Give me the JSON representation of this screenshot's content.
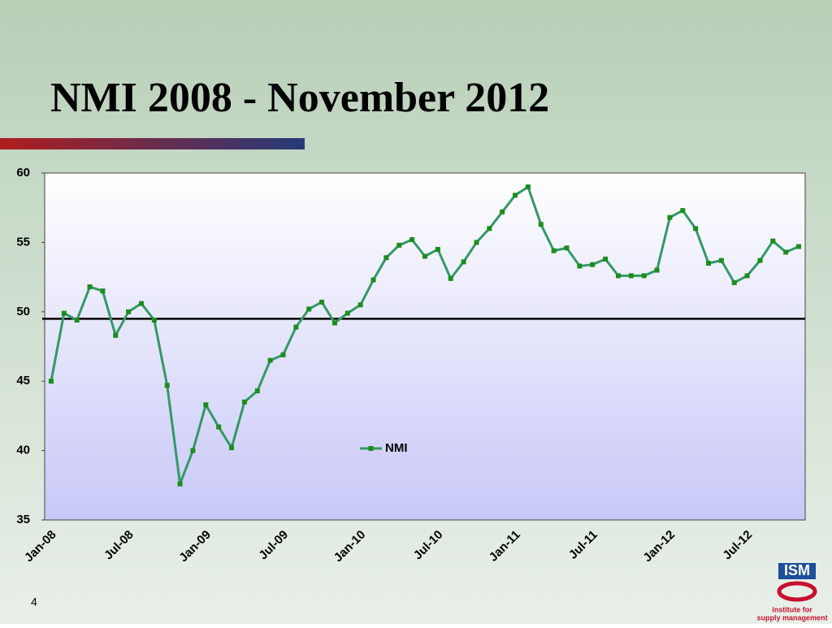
{
  "slide": {
    "title": "NMI  2008 - November 2012",
    "page_number": "4",
    "logo": {
      "name": "ISM",
      "tagline_1": "institute for",
      "tagline_2": "supply management"
    }
  },
  "chart_data": {
    "type": "line",
    "categories": [
      "Jan-08",
      null,
      null,
      null,
      null,
      null,
      "Jul-08",
      null,
      null,
      null,
      null,
      null,
      "Jan-09",
      null,
      null,
      null,
      null,
      null,
      "Jul-09",
      null,
      null,
      null,
      null,
      null,
      "Jan-10",
      null,
      null,
      null,
      null,
      null,
      "Jul-10",
      null,
      null,
      null,
      null,
      null,
      "Jan-11",
      null,
      null,
      null,
      null,
      null,
      "Jul-11",
      null,
      null,
      null,
      null,
      null,
      "Jan-12",
      null,
      null,
      null,
      null,
      null,
      "Jul-12",
      null,
      null,
      null,
      null
    ],
    "series": [
      {
        "name": "NMI",
        "color": "#339966",
        "marker_color": "#1e8c1e",
        "values": [
          45.0,
          49.9,
          49.4,
          51.8,
          51.5,
          48.3,
          50.0,
          50.6,
          49.4,
          44.7,
          37.6,
          40.0,
          43.3,
          41.7,
          40.2,
          43.5,
          44.3,
          46.5,
          46.9,
          48.9,
          50.2,
          50.7,
          49.2,
          49.9,
          50.5,
          52.3,
          53.9,
          54.8,
          55.2,
          54.0,
          54.5,
          52.4,
          53.6,
          55.0,
          56.0,
          57.2,
          58.4,
          59.0,
          56.3,
          54.4,
          54.6,
          53.3,
          53.4,
          53.8,
          52.6,
          52.6,
          52.6,
          53.0,
          56.8,
          57.3,
          56.0,
          53.5,
          53.7,
          52.1,
          52.6,
          53.7,
          55.1,
          54.3,
          54.7
        ]
      }
    ],
    "ylim": [
      35,
      60
    ],
    "yticks": [
      35,
      40,
      45,
      50,
      55,
      60
    ],
    "reference_line": 49.5,
    "grid": false,
    "legend": "center"
  }
}
